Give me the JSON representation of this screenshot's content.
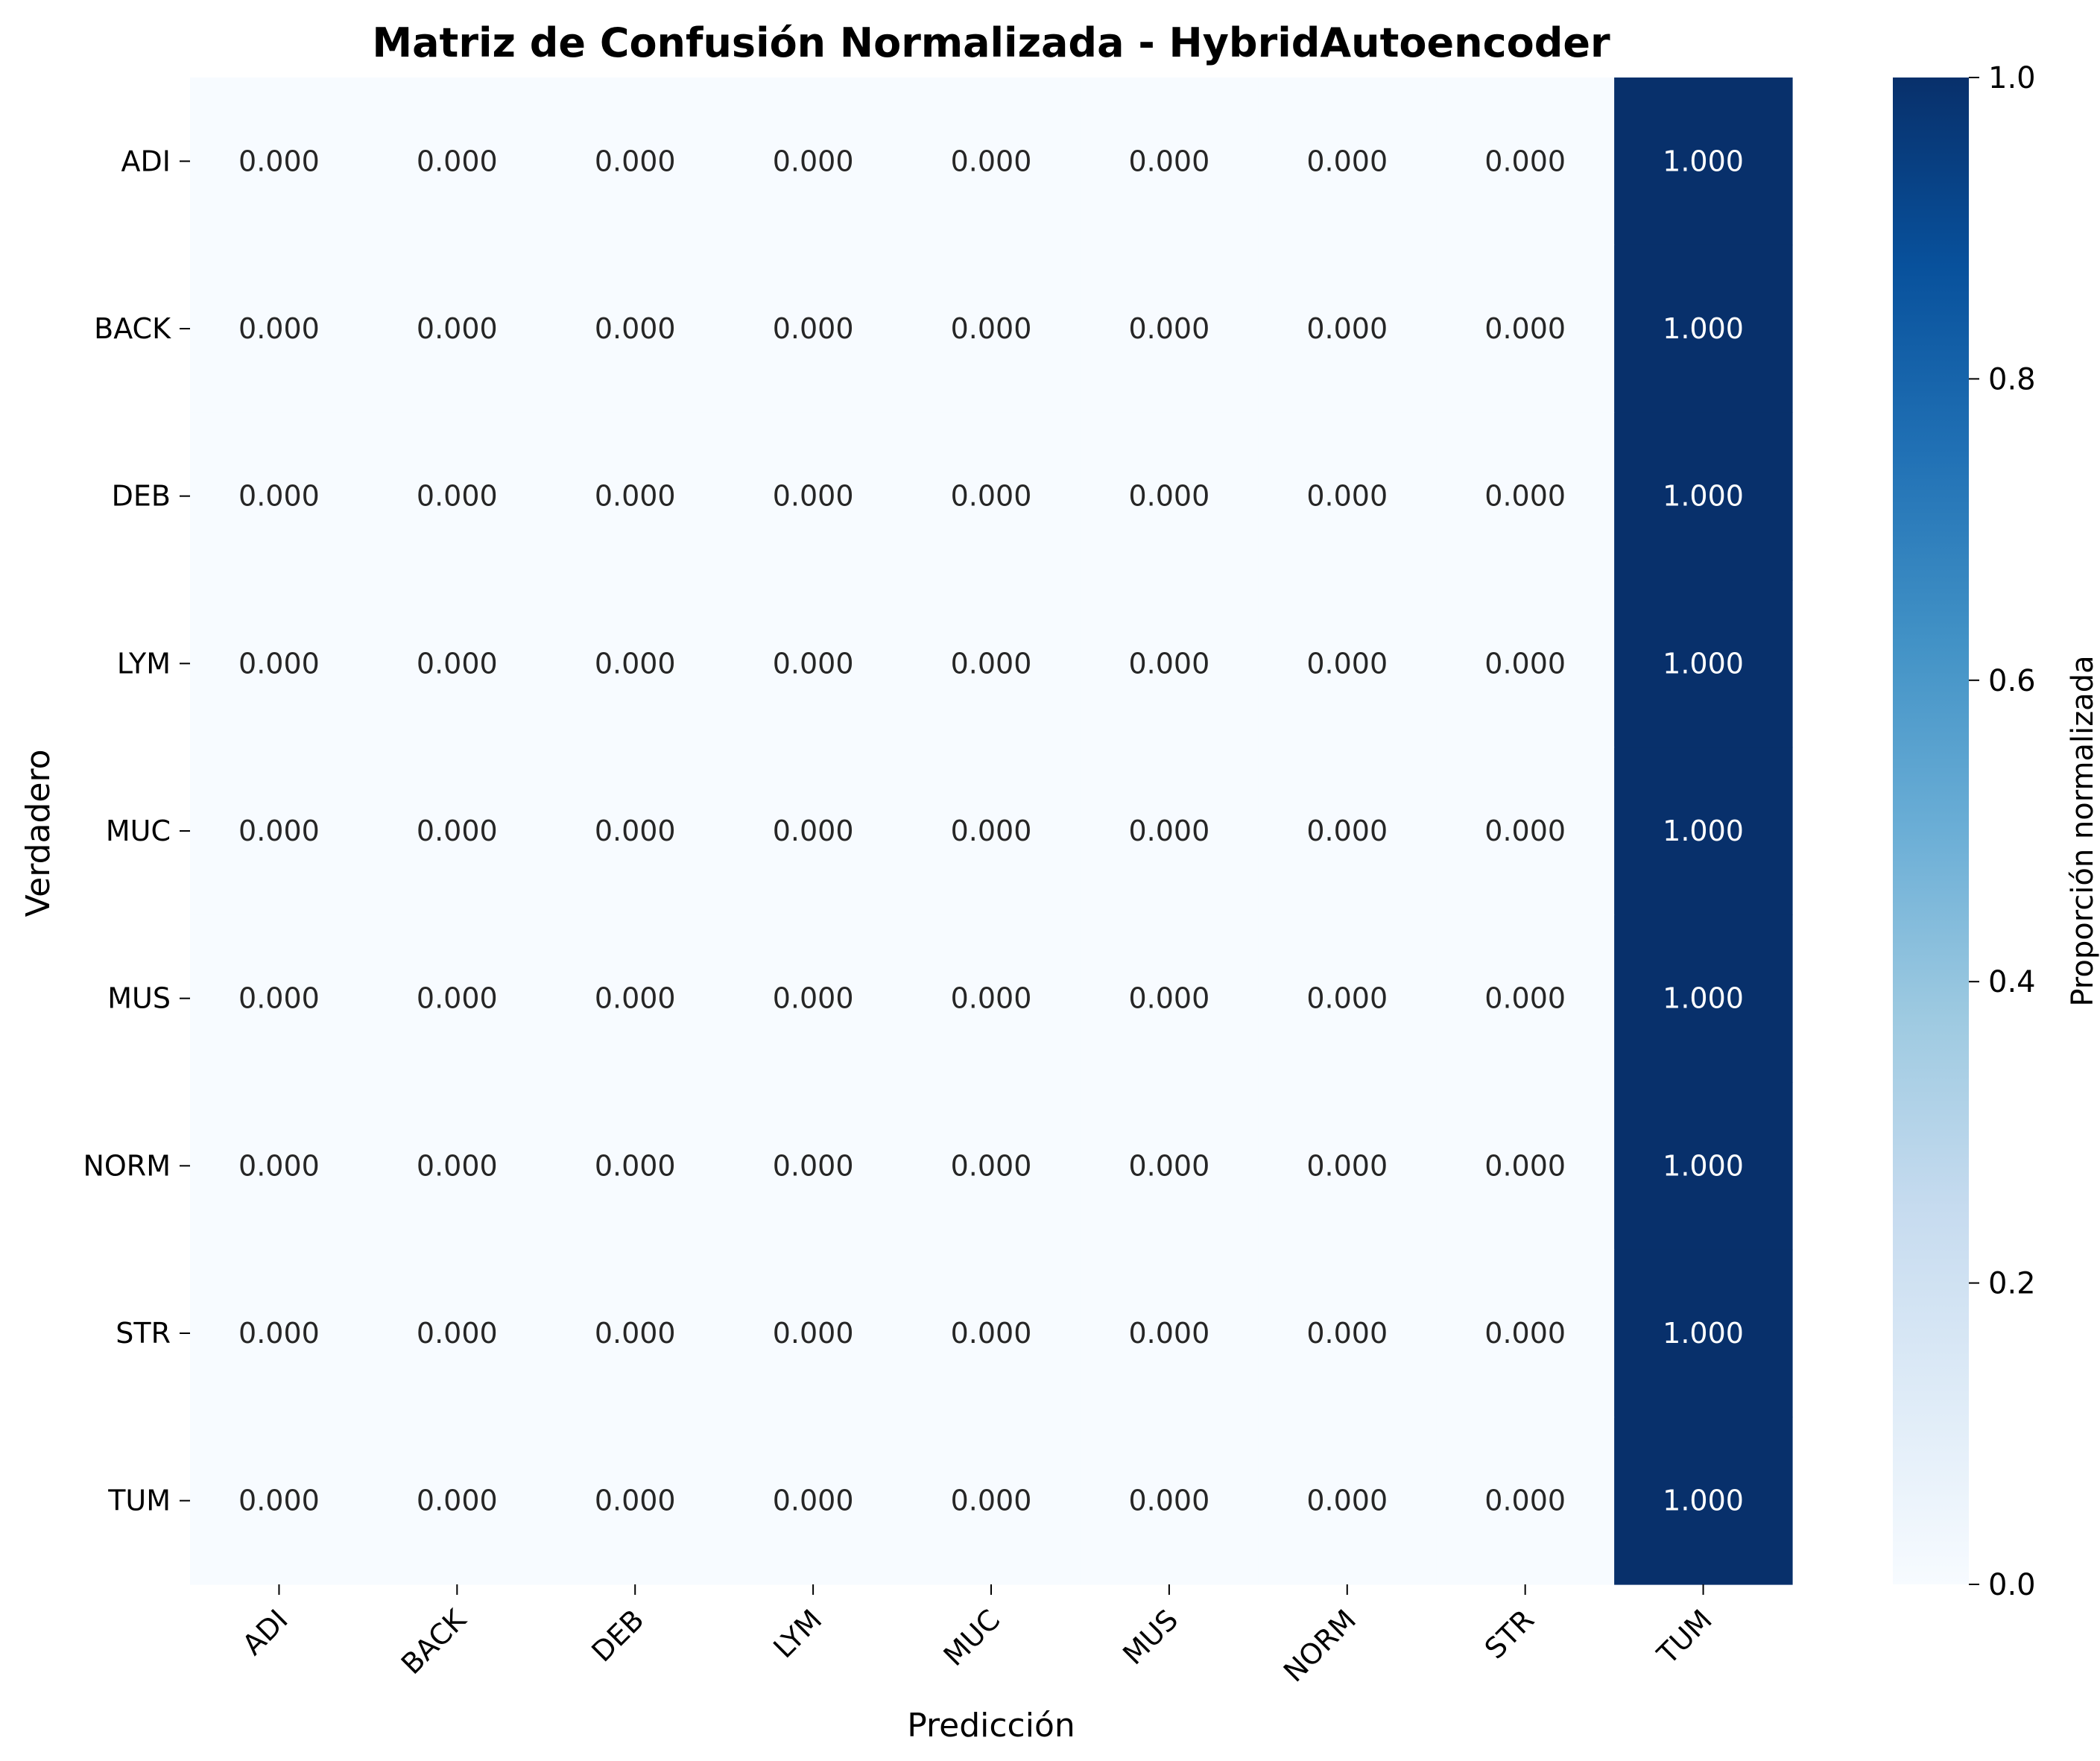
{
  "chart_data": {
    "type": "heatmap",
    "title": "Matriz de Confusión Normalizada - HybridAutoencoder",
    "xlabel": "Predicción",
    "ylabel": "Verdadero",
    "x_categories": [
      "ADI",
      "BACK",
      "DEB",
      "LYM",
      "MUC",
      "MUS",
      "NORM",
      "STR",
      "TUM"
    ],
    "y_categories": [
      "ADI",
      "BACK",
      "DEB",
      "LYM",
      "MUC",
      "MUS",
      "NORM",
      "STR",
      "TUM"
    ],
    "values": [
      [
        0,
        0,
        0,
        0,
        0,
        0,
        0,
        0,
        1
      ],
      [
        0,
        0,
        0,
        0,
        0,
        0,
        0,
        0,
        1
      ],
      [
        0,
        0,
        0,
        0,
        0,
        0,
        0,
        0,
        1
      ],
      [
        0,
        0,
        0,
        0,
        0,
        0,
        0,
        0,
        1
      ],
      [
        0,
        0,
        0,
        0,
        0,
        0,
        0,
        0,
        1
      ],
      [
        0,
        0,
        0,
        0,
        0,
        0,
        0,
        0,
        1
      ],
      [
        0,
        0,
        0,
        0,
        0,
        0,
        0,
        0,
        1
      ],
      [
        0,
        0,
        0,
        0,
        0,
        0,
        0,
        0,
        1
      ],
      [
        0,
        0,
        0,
        0,
        0,
        0,
        0,
        0,
        1
      ]
    ],
    "value_format_decimals": 3,
    "colorbar": {
      "label": "Proporción normalizada",
      "range": [
        0,
        1
      ],
      "ticks": [
        0,
        0.2,
        0.4,
        0.6,
        0.8,
        1
      ],
      "tick_labels": [
        "0.0",
        "0.2",
        "0.4",
        "0.6",
        "0.8",
        "1.0"
      ]
    },
    "colormap": "Blues",
    "colormap_stops": [
      "#f7fbff",
      "#deebf7",
      "#c6dbef",
      "#9ecae1",
      "#6baed6",
      "#4292c6",
      "#2171b5",
      "#08519c",
      "#08306b"
    ],
    "text_colors": {
      "light_cell": "#262626",
      "dark_cell": "#ffffff"
    },
    "grid": false
  }
}
